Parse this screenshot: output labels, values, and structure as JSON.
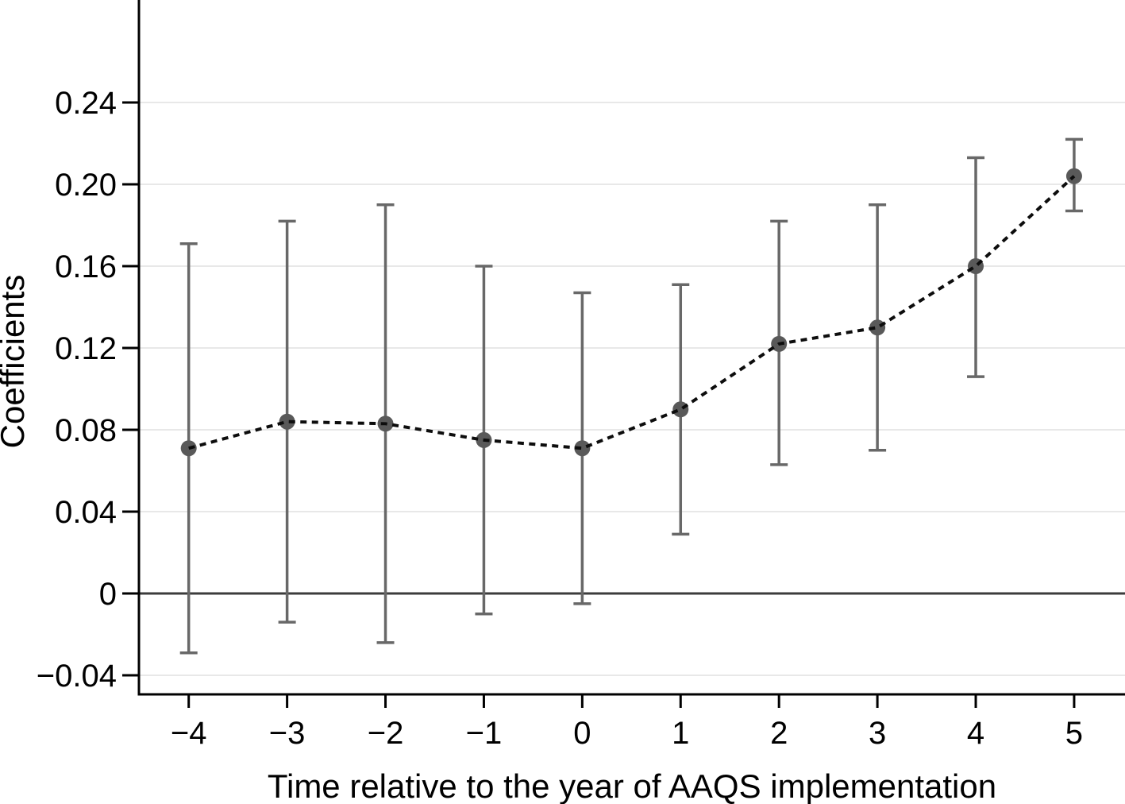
{
  "page": {
    "background": "#ffffff"
  },
  "chart_data": {
    "type": "scatter",
    "subtype": "event-study-coefficient-plot",
    "title": "",
    "xlabel": "Time relative to the year of AAQS implementation",
    "ylabel": "Coefficients",
    "x": [
      -4,
      -3,
      -2,
      -1,
      0,
      1,
      2,
      3,
      4,
      5
    ],
    "x_tick_labels": [
      "−4",
      "−3",
      "−2",
      "−1",
      "0",
      "1",
      "2",
      "3",
      "4",
      "5"
    ],
    "series": [
      {
        "name": "coefficient",
        "marker": "circle",
        "line_style": "dotted",
        "values": [
          0.071,
          0.084,
          0.083,
          0.075,
          0.071,
          0.09,
          0.122,
          0.13,
          0.16,
          0.204
        ],
        "ci_low": [
          -0.029,
          -0.014,
          -0.024,
          -0.01,
          -0.005,
          0.029,
          0.063,
          0.07,
          0.106,
          0.187
        ],
        "ci_high": [
          0.171,
          0.182,
          0.19,
          0.16,
          0.147,
          0.151,
          0.182,
          0.19,
          0.213,
          0.222
        ]
      }
    ],
    "y_ticks": [
      -0.04,
      0,
      0.04,
      0.08,
      0.12,
      0.16,
      0.2,
      0.24
    ],
    "y_tick_labels": [
      "−0.04",
      "0",
      "0.04",
      "0.08",
      "0.12",
      "0.16",
      "0.20",
      "0.24"
    ],
    "ylim": [
      -0.0493,
      0.2901
    ],
    "xlim": [
      -4.506,
      5.517
    ],
    "grid": "horizontal-light",
    "zero_reference_line": 0,
    "legend": "none",
    "colors": {
      "marker": "#595959",
      "error_bar": "#686868",
      "dashed_line": "#0d0d0d",
      "gridline": "#e8e8e8",
      "zero_line": "#3c3c3c",
      "axis": "#000000",
      "text": "#000000",
      "background": "#ffffff"
    }
  }
}
